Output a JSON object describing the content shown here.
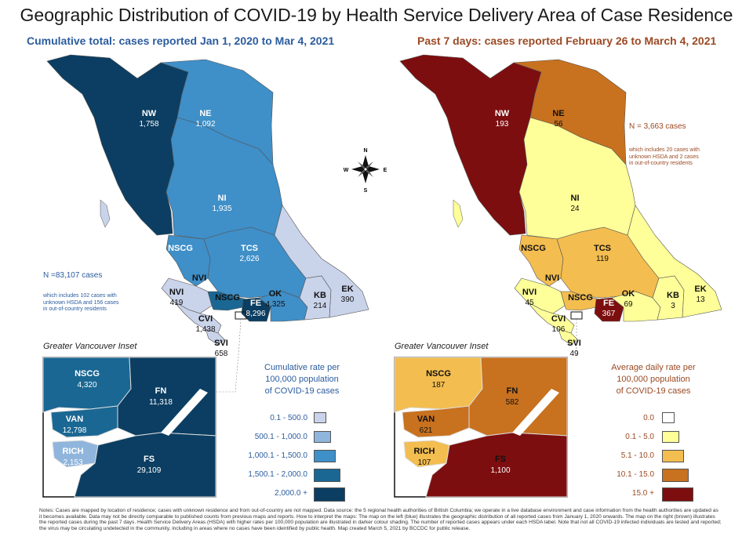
{
  "title": "Geographic Distribution of COVID-19 by Health Service Delivery Area of Case Residence",
  "left": {
    "subtitle": "Cumulative total: cases reported Jan 1, 2020 to Mar 4, 2021",
    "n_text": "N =83,107 cases",
    "n_info": [
      "which includes 102 cases with",
      "unknown HSDA and 156 cases",
      "in out-of-country residents"
    ],
    "regions": [
      {
        "code": "NW",
        "value": "1,758"
      },
      {
        "code": "NE",
        "value": "1,092"
      },
      {
        "code": "NI",
        "value": "1,935"
      },
      {
        "code": "NSCG",
        "value": ""
      },
      {
        "code": "TCS",
        "value": "2,626"
      },
      {
        "code": "NVI",
        "value": ""
      },
      {
        "code": "NVI",
        "value": "419"
      },
      {
        "code": "NSCG",
        "value": ""
      },
      {
        "code": "FE",
        "value": "8,296"
      },
      {
        "code": "OK",
        "value": "4,325"
      },
      {
        "code": "KB",
        "value": "214"
      },
      {
        "code": "EK",
        "value": "390"
      },
      {
        "code": "CVI",
        "value": "1,438"
      },
      {
        "code": "SVI",
        "value": "658"
      }
    ],
    "inset_title": "Greater Vancouver Inset",
    "inset": [
      {
        "code": "NSCG",
        "value": "4,320"
      },
      {
        "code": "FN",
        "value": "11,318"
      },
      {
        "code": "VAN",
        "value": "12,798"
      },
      {
        "code": "RICH",
        "value": "2,153"
      },
      {
        "code": "FS",
        "value": "29,109"
      }
    ],
    "legend_title": [
      "Cumulative rate per",
      "100,000 population",
      "of COVID-19 cases"
    ],
    "legend": [
      {
        "label": "0.1 - 500.0",
        "color": "#c9d3ea"
      },
      {
        "label": "500.1 - 1,000.0",
        "color": "#8fb5dc"
      },
      {
        "label": "1,000.1 - 1,500.0",
        "color": "#3f8fc8"
      },
      {
        "label": "1,500.1 - 2,000.0",
        "color": "#1a6793"
      },
      {
        "label": "2,000.0 +",
        "color": "#0b3e62"
      }
    ]
  },
  "right": {
    "subtitle": "Past 7 days: cases reported February 26 to March 4, 2021",
    "n_text": "N = 3,663 cases",
    "n_info": [
      "which includes 20 cases with",
      "unknown HSDA and 2 cases",
      "in out-of-country residents"
    ],
    "regions": [
      {
        "code": "NW",
        "value": "193"
      },
      {
        "code": "NE",
        "value": "56"
      },
      {
        "code": "NI",
        "value": "24"
      },
      {
        "code": "NSCG",
        "value": ""
      },
      {
        "code": "TCS",
        "value": "119"
      },
      {
        "code": "NVI",
        "value": ""
      },
      {
        "code": "NVI",
        "value": "45"
      },
      {
        "code": "NSCG",
        "value": ""
      },
      {
        "code": "FE",
        "value": "367"
      },
      {
        "code": "OK",
        "value": "69"
      },
      {
        "code": "KB",
        "value": "3"
      },
      {
        "code": "EK",
        "value": "13"
      },
      {
        "code": "CVI",
        "value": "106"
      },
      {
        "code": "SVI",
        "value": "49"
      }
    ],
    "inset_title": "Greater Vancouver Inset",
    "inset": [
      {
        "code": "NSCG",
        "value": "187"
      },
      {
        "code": "FN",
        "value": "582"
      },
      {
        "code": "VAN",
        "value": "621"
      },
      {
        "code": "RICH",
        "value": "107"
      },
      {
        "code": "FS",
        "value": "1,100"
      }
    ],
    "legend_title": [
      "Average daily rate per",
      "100,000 population",
      "of COVID-19 cases"
    ],
    "legend": [
      {
        "label": "0.0",
        "color": "#ffffff"
      },
      {
        "label": "0.1 - 5.0",
        "color": "#ffff99"
      },
      {
        "label": "5.1 - 10.0",
        "color": "#f3bd4f"
      },
      {
        "label": "10.1 - 15.0",
        "color": "#c8711f"
      },
      {
        "label": "15.0 +",
        "color": "#7d0e0f"
      }
    ]
  },
  "compass": {
    "n": "N",
    "s": "S",
    "e": "E",
    "w": "W"
  },
  "notes": "Notes: Cases are mapped by location of residence; cases with unknown residence and from out-of-country are not mapped. Data source: the 5 regional health authorities of British Columbia; we operate in a live database environment and case information from the health authorities are updated as it becomes available. Data may not be directly comparable to published counts from previous maps and reports. How to interpret the maps: The map on the left (blue) illustrates the geographic distribution of all reported cases from January 1, 2020 onwards. The map on the right (brown) illustrates the reported cases during the past 7 days. Health Service Delivery Areas (HSDA) with higher rates per 100,000 population are illustrated in darker colour shading. The number of reported cases appears under each HSDA label. Note that not all COVID-19 infected individuals are tested and reported; the virus may be circulating undetected in the community, including in areas where no cases have been identified by public health. Map created March 5, 2021 by BCCDC for public release.",
  "colors": {
    "left": {
      "NW": "#0b3e62",
      "NE": "#3f8fc8",
      "NI": "#3f8fc8",
      "NSCG": "#3f8fc8",
      "TCS": "#3f8fc8",
      "NVI": "#c9d3ea",
      "FE": "#0b3e62",
      "OK": "#3f8fc8",
      "KB": "#c9d3ea",
      "EK": "#c9d3ea",
      "CVI": "#c9d3ea",
      "SVI": "#c9d3ea",
      "VCH": "#1a6793"
    },
    "right": {
      "NW": "#7d0e0f",
      "NE": "#c8711f",
      "NI": "#ffff99",
      "NSCG": "#f3bd4f",
      "TCS": "#f3bd4f",
      "NVI": "#ffff99",
      "FE": "#7d0e0f",
      "OK": "#ffff99",
      "KB": "#ffff99",
      "EK": "#ffff99",
      "CVI": "#ffff99",
      "SVI": "#ffff99",
      "VCH": "#f3bd4f"
    },
    "inset_left": {
      "NSCG": "#1a6793",
      "FN": "#0b3e62",
      "VAN": "#1a6793",
      "RICH": "#8fb5dc",
      "FS": "#0b3e62"
    },
    "inset_right": {
      "NSCG": "#f3bd4f",
      "FN": "#c8711f",
      "VAN": "#c8711f",
      "RICH": "#f3bd4f",
      "FS": "#7d0e0f"
    }
  }
}
